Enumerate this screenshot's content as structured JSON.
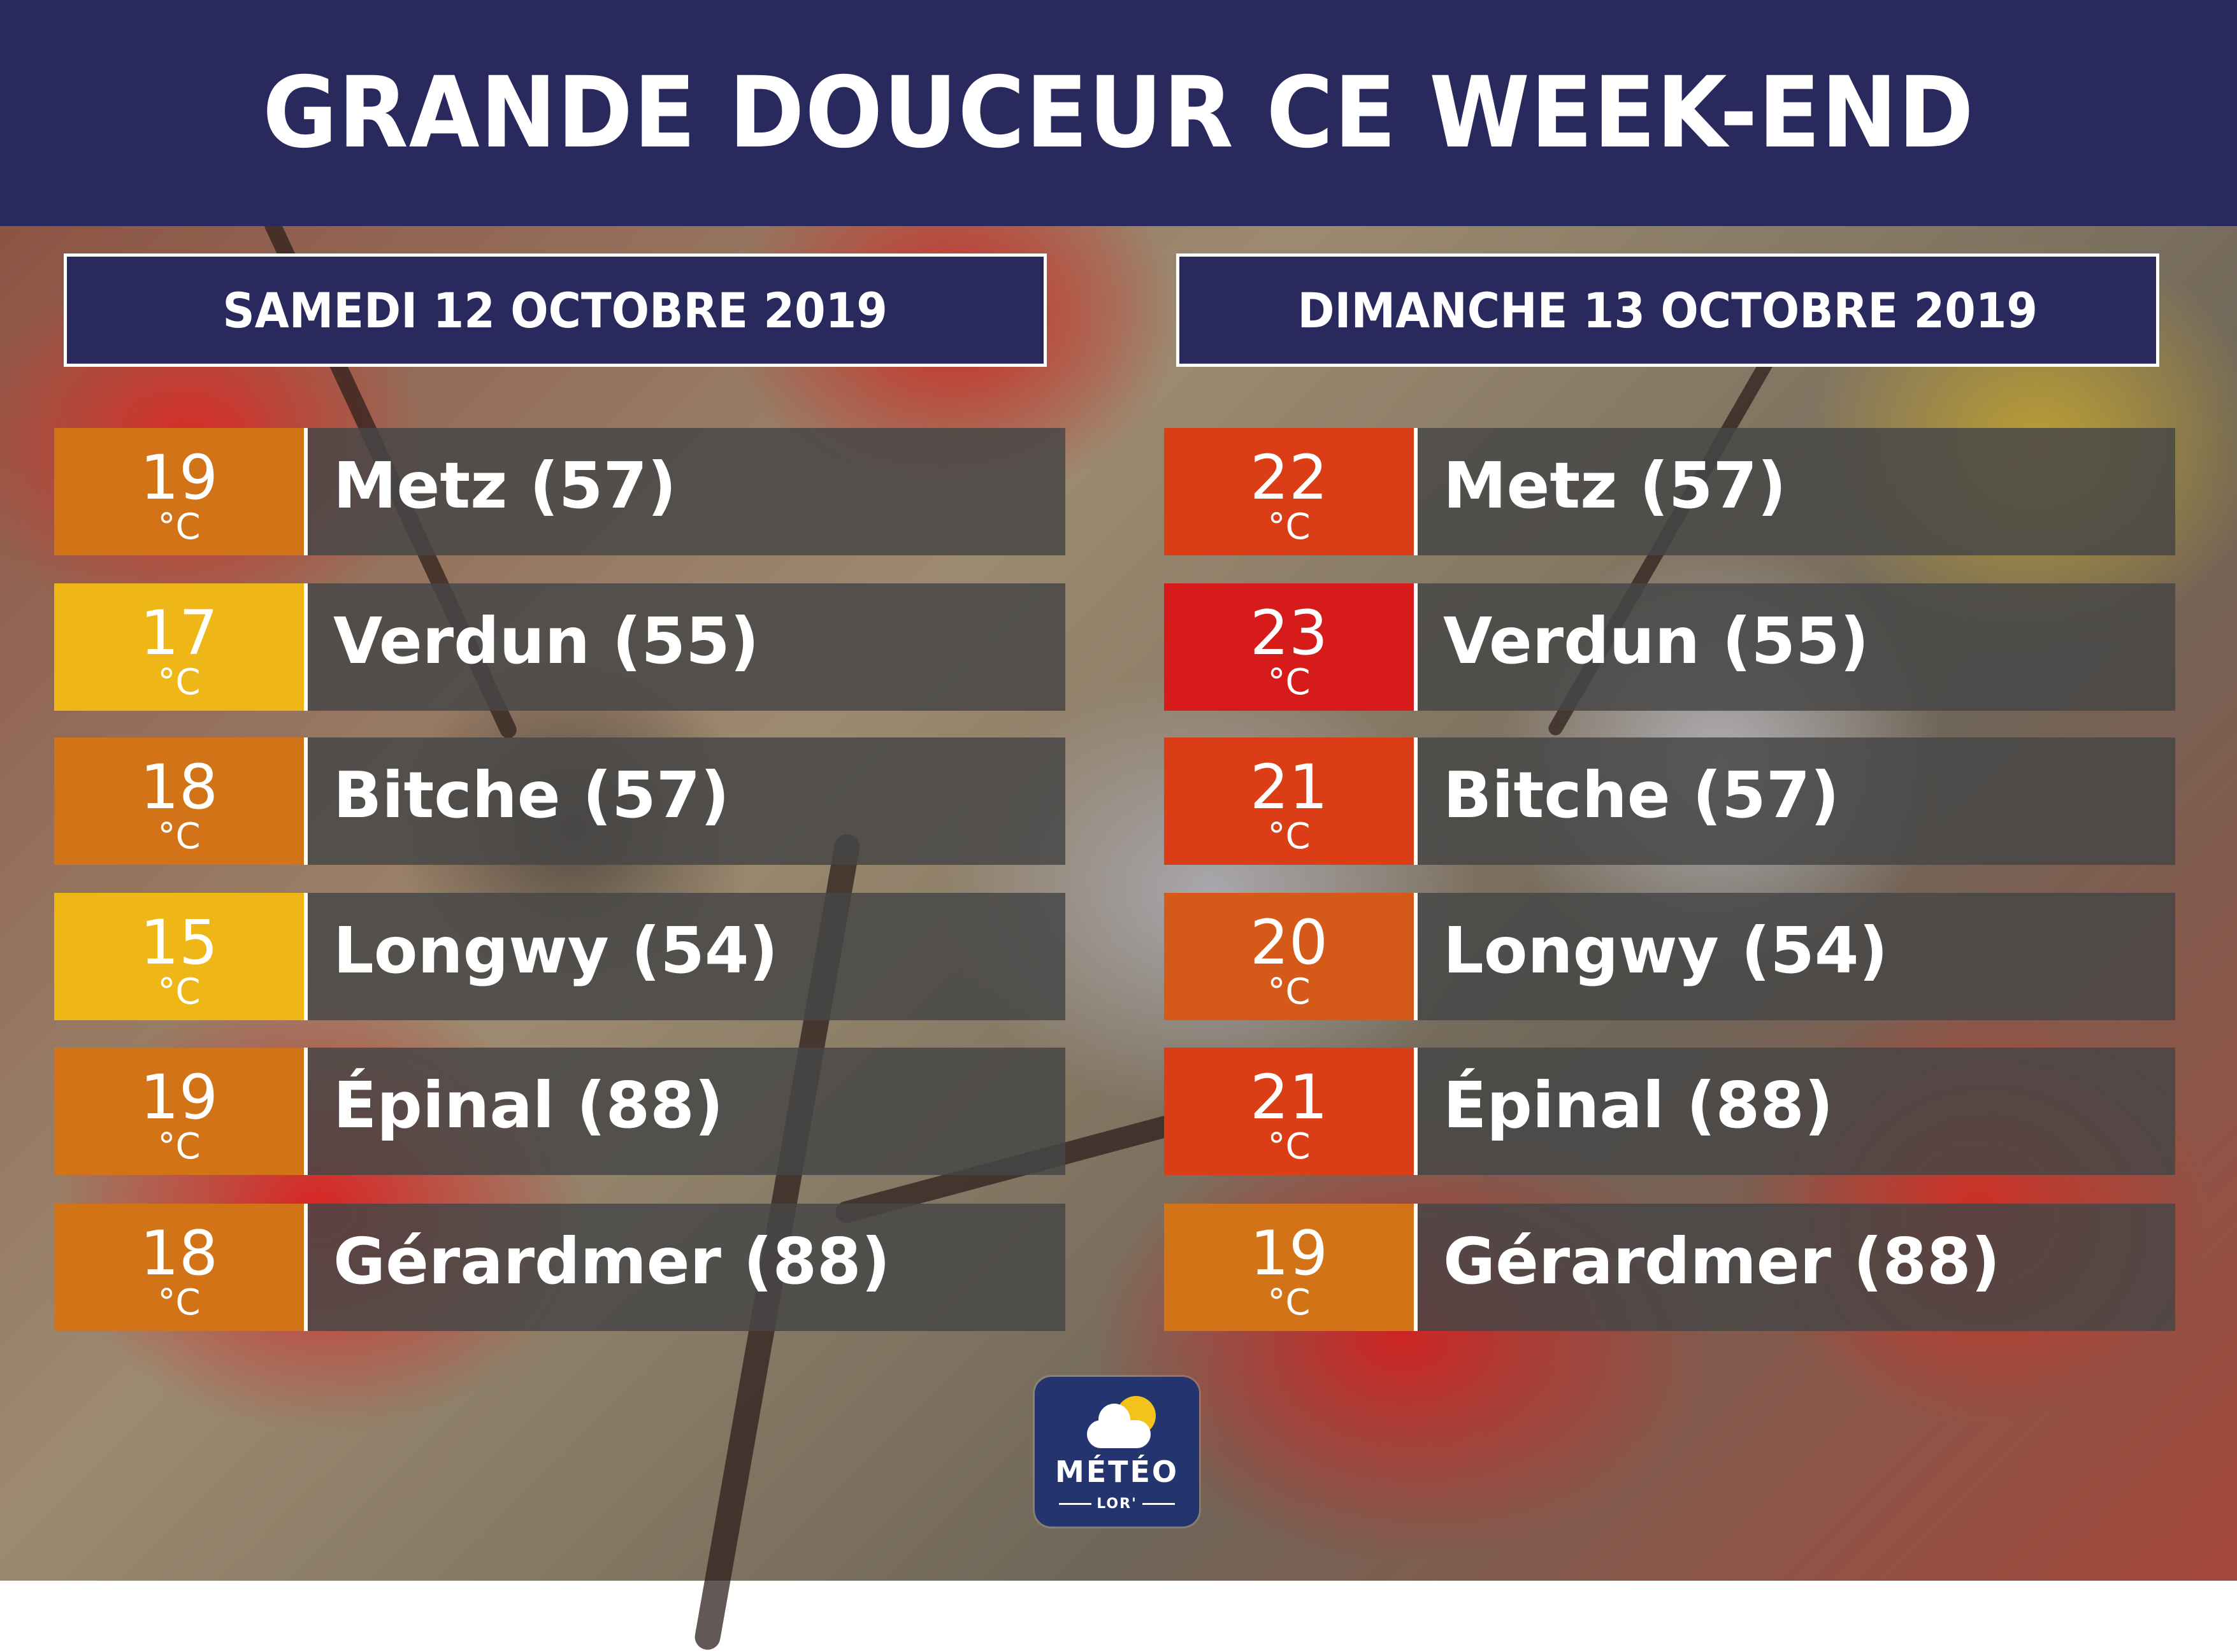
{
  "title": "GRANDE DOUCEUR CE WEEK-END",
  "unit": "°C",
  "days": [
    {
      "label": "SAMEDI 12 OCTOBRE 2019",
      "rows": [
        {
          "temp": "19",
          "city": "Metz (57)",
          "color": "#d27317"
        },
        {
          "temp": "17",
          "city": "Verdun (55)",
          "color": "#eeb616"
        },
        {
          "temp": "18",
          "city": "Bitche (57)",
          "color": "#d27317"
        },
        {
          "temp": "15",
          "city": "Longwy (54)",
          "color": "#eeb616"
        },
        {
          "temp": "19",
          "city": "Épinal (88)",
          "color": "#d27317"
        },
        {
          "temp": "18",
          "city": "Gérardmer (88)",
          "color": "#d27317"
        }
      ]
    },
    {
      "label": "DIMANCHE 13 OCTOBRE 2019",
      "rows": [
        {
          "temp": "22",
          "city": "Metz (57)",
          "color": "#db3d17"
        },
        {
          "temp": "23",
          "city": "Verdun (55)",
          "color": "#d71a1a"
        },
        {
          "temp": "21",
          "city": "Bitche (57)",
          "color": "#db3d17"
        },
        {
          "temp": "20",
          "city": "Longwy (54)",
          "color": "#d55a19"
        },
        {
          "temp": "21",
          "city": "Épinal (88)",
          "color": "#db3d17"
        },
        {
          "temp": "19",
          "city": "Gérardmer (88)",
          "color": "#d27317"
        }
      ]
    }
  ],
  "logo": {
    "brand": "MÉTÉO",
    "sub": "LOR'",
    "icon": "sun-cloud-icon"
  }
}
